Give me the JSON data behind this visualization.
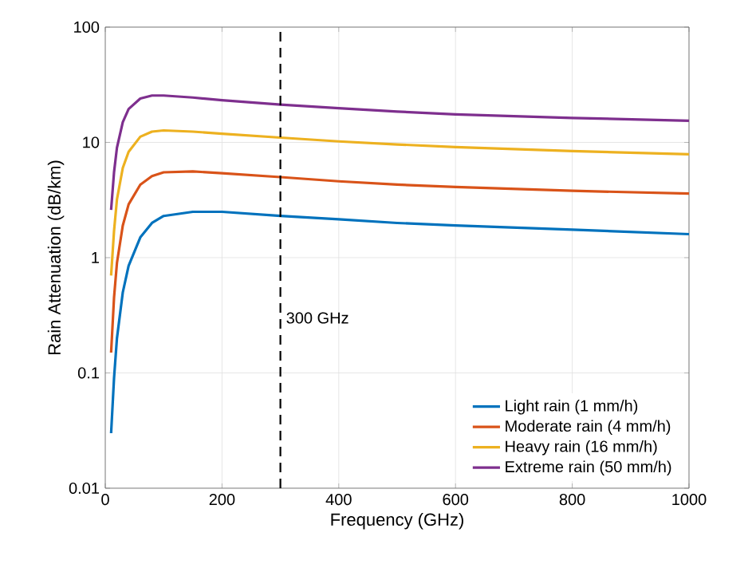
{
  "chart_data": {
    "type": "line",
    "xlabel": "Frequency (GHz)",
    "ylabel": "Rain Attenuation (dB/km)",
    "log": "y",
    "grid": true,
    "legend": "bottom right",
    "line_style": "solid",
    "marker": "none",
    "xlim": [
      0,
      1000
    ],
    "xticks": [
      0,
      200,
      400,
      600,
      800,
      1000
    ],
    "ylim": [
      0.01,
      100
    ],
    "yticks": [
      0.01,
      0.1,
      1,
      10,
      100
    ],
    "x": [
      10,
      15,
      20,
      30,
      40,
      60,
      80,
      100,
      150,
      200,
      300,
      400,
      500,
      600,
      800,
      1000
    ],
    "series": [
      {
        "name": "Light rain (1 mm/h)",
        "color": "#0072bd",
        "values": [
          0.03,
          0.09,
          0.2,
          0.5,
          0.85,
          1.5,
          2.0,
          2.3,
          2.5,
          2.5,
          2.3,
          2.15,
          2.0,
          1.9,
          1.75,
          1.6
        ]
      },
      {
        "name": "Moderate rain (4 mm/h)",
        "color": "#d95319",
        "values": [
          0.15,
          0.45,
          0.9,
          1.9,
          2.9,
          4.3,
          5.1,
          5.5,
          5.6,
          5.4,
          5.0,
          4.6,
          4.3,
          4.1,
          3.8,
          3.6
        ]
      },
      {
        "name": "Heavy rain (16 mm/h)",
        "color": "#edb120",
        "values": [
          0.7,
          1.7,
          3.2,
          6,
          8.3,
          11.2,
          12.4,
          12.7,
          12.4,
          11.9,
          11,
          10.2,
          9.6,
          9.1,
          8.4,
          7.9
        ]
      },
      {
        "name": "Extreme rain (50 mm/h)",
        "color": "#7e2f8e",
        "values": [
          2.6,
          5.5,
          9,
          15,
          19.5,
          24,
          25.5,
          25.5,
          24.5,
          23.2,
          21.3,
          19.8,
          18.5,
          17.5,
          16.3,
          15.4
        ]
      }
    ],
    "ref_lines": [
      {
        "axis": "x",
        "value": 300,
        "label": "300 GHz",
        "color": "#000000",
        "line_style": "dashed"
      }
    ]
  }
}
